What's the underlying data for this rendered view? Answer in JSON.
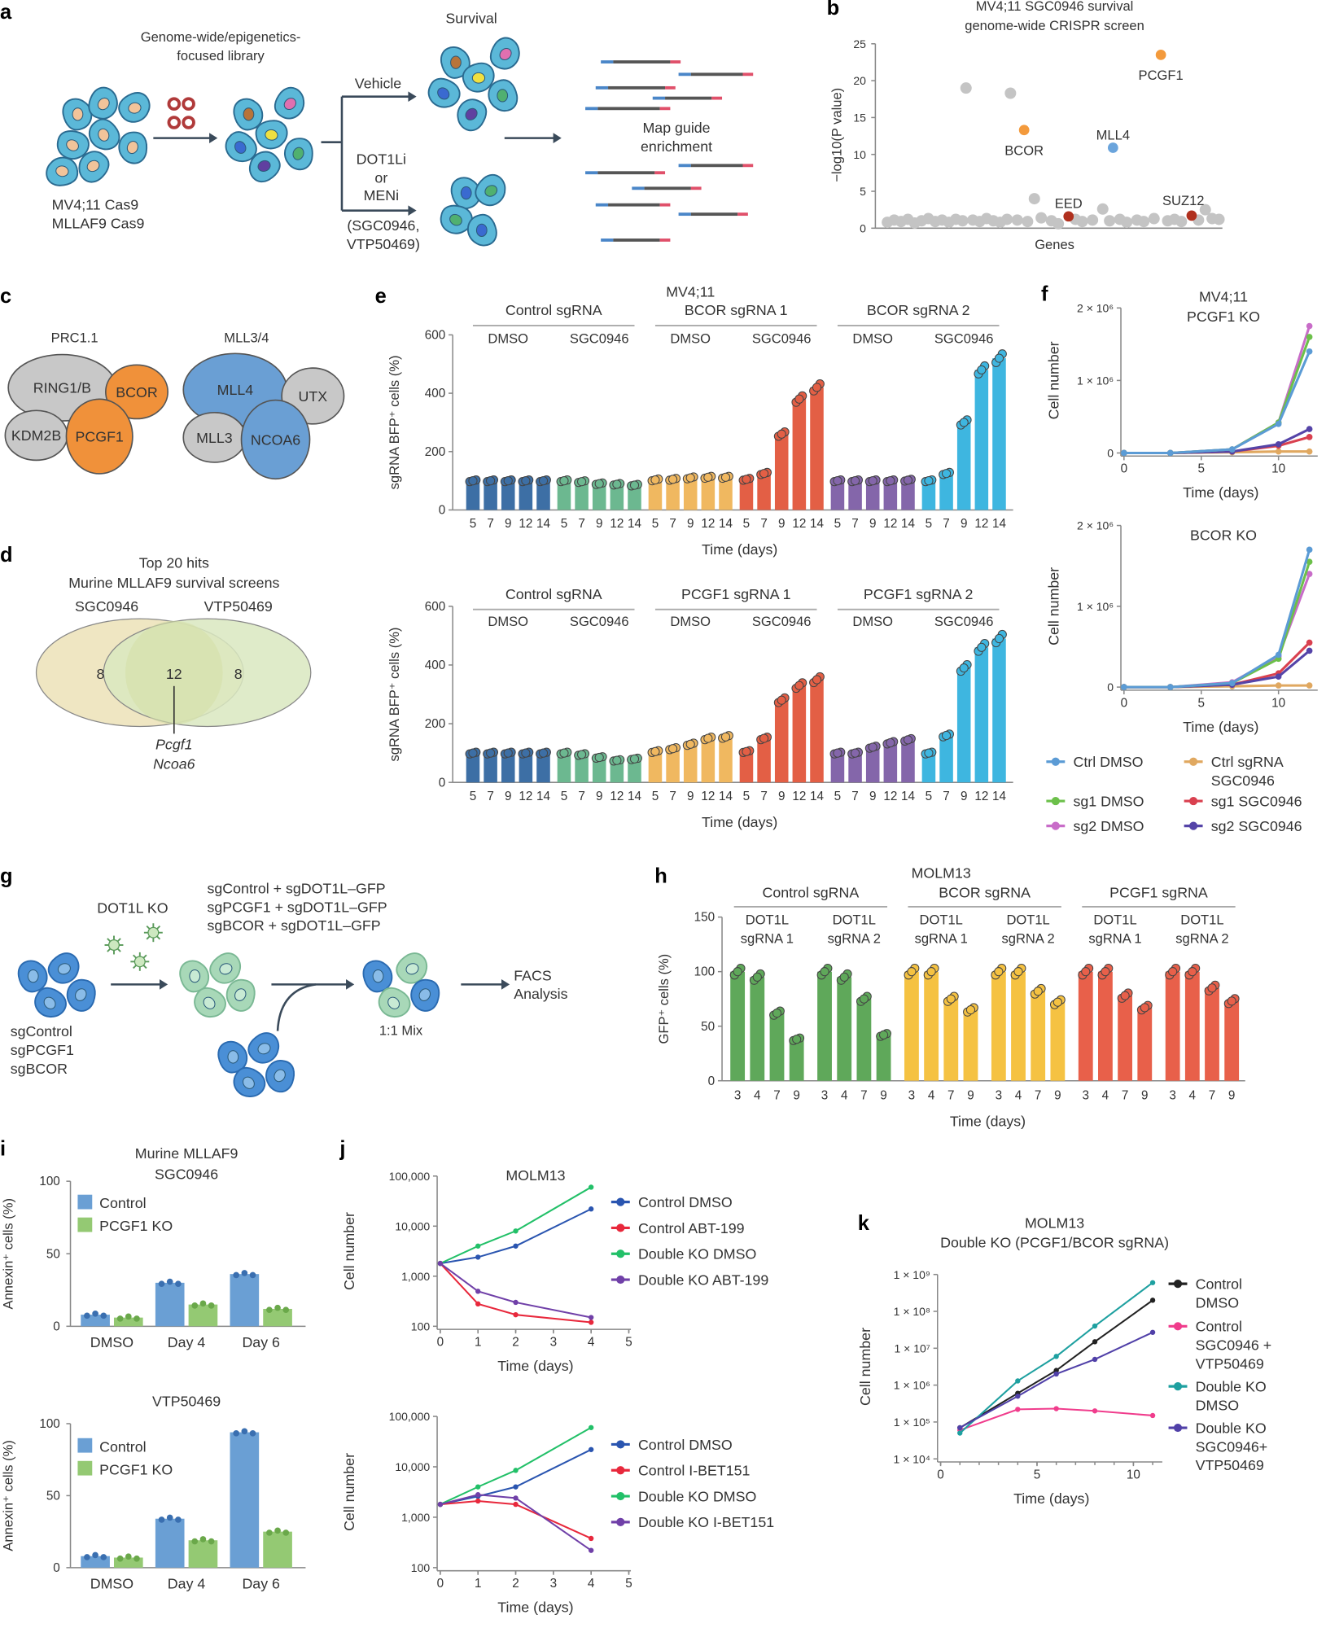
{
  "panels": [
    "a",
    "b",
    "c",
    "d",
    "e",
    "f",
    "g",
    "h",
    "i",
    "j",
    "k"
  ],
  "a": {
    "library": [
      "Genome-wide/epigenetics-",
      "focused library"
    ],
    "cells": [
      "MV4;11 Cas9",
      "MLLAF9 Cas9"
    ],
    "survival": "Survival",
    "vehicle": "Vehicle",
    "drug": [
      "DOT1Li",
      "or",
      "MENi",
      "(SGC0946,",
      "VTP50469)"
    ],
    "map": [
      "Map guide",
      "enrichment"
    ]
  },
  "c": {
    "prc": "PRC1.1",
    "mll": "MLL3/4",
    "subunits": [
      {
        "label": "RING1/B",
        "color": "#c8c8c8"
      },
      {
        "label": "BCOR",
        "color": "#f0913a"
      },
      {
        "label": "KDM2B",
        "color": "#c8c8c8"
      },
      {
        "label": "PCGF1",
        "color": "#f0913a"
      },
      {
        "label": "MLL4",
        "color": "#6a9fd4"
      },
      {
        "label": "UTX",
        "color": "#c8c8c8"
      },
      {
        "label": "MLL3",
        "color": "#c8c8c8"
      },
      {
        "label": "NCOA6",
        "color": "#6a9fd4"
      }
    ]
  },
  "d": {
    "title": [
      "Top 20 hits",
      "Murine MLLAF9 survival screens"
    ],
    "sets": [
      "SGC0946",
      "VTP50469"
    ],
    "counts": [
      "8",
      "12",
      "8"
    ],
    "genes": [
      "Pcgf1",
      "Ncoa6"
    ],
    "colors": [
      "#efe6c2",
      "#d9e7c0"
    ]
  },
  "g": {
    "ko": "DOT1L KO",
    "combos": [
      "sgControl + sgDOT1L–GFP",
      "sgPCGF1 + sgDOT1L–GFP",
      "sgBCOR + sgDOT1L–GFP"
    ],
    "guides": [
      "sgControl",
      "sgPCGF1",
      "sgBCOR"
    ],
    "mix": "1:1 Mix",
    "facs": [
      "FACS",
      "Analysis"
    ]
  },
  "chart_data": [
    {
      "panel": "b",
      "type": "scatter",
      "title": [
        "MV4;11 SGC0946 survival",
        "genome-wide CRISPR screen"
      ],
      "xlabel": "Genes",
      "ylabel": "−log10(P value)",
      "ylim": [
        0,
        25
      ],
      "yticks": [
        0,
        5,
        10,
        15,
        20,
        25
      ],
      "highlighted": [
        {
          "gene": "PCGF1",
          "x": 82,
          "y": 23.5,
          "color": "#f39a3c"
        },
        {
          "gene": "BCOR",
          "x": 42,
          "y": 13.3,
          "color": "#f39a3c"
        },
        {
          "gene": "MLL4",
          "x": 68,
          "y": 10.9,
          "color": "#6aa4dc"
        },
        {
          "gene": "EED",
          "x": 55,
          "y": 1.6,
          "color": "#b0301e"
        },
        {
          "gene": "SUZ12",
          "x": 91,
          "y": 1.7,
          "color": "#b0301e"
        }
      ],
      "other_color": "#c4c4c4",
      "other_points": [
        [
          2,
          0.8
        ],
        [
          4,
          1.1
        ],
        [
          6,
          0.9
        ],
        [
          8,
          1.2
        ],
        [
          10,
          0.7
        ],
        [
          12,
          1.0
        ],
        [
          14,
          1.3
        ],
        [
          16,
          0.9
        ],
        [
          18,
          1.1
        ],
        [
          20,
          0.8
        ],
        [
          22,
          1.2
        ],
        [
          24,
          1.0
        ],
        [
          25,
          19
        ],
        [
          27,
          1.1
        ],
        [
          29,
          0.9
        ],
        [
          31,
          1.3
        ],
        [
          33,
          1.0
        ],
        [
          35,
          0.8
        ],
        [
          37,
          1.2
        ],
        [
          38,
          18.3
        ],
        [
          40,
          1.1
        ],
        [
          43,
          0.9
        ],
        [
          45,
          4
        ],
        [
          47,
          1.4
        ],
        [
          50,
          1.0
        ],
        [
          52,
          0.6
        ],
        [
          57,
          1.2
        ],
        [
          59,
          0.9
        ],
        [
          62,
          1.1
        ],
        [
          65,
          2.6
        ],
        [
          67,
          1.0
        ],
        [
          70,
          1.2
        ],
        [
          72,
          0.8
        ],
        [
          75,
          1.1
        ],
        [
          77,
          0.9
        ],
        [
          80,
          1.3
        ],
        [
          84,
          1.0
        ],
        [
          86,
          1.2
        ],
        [
          88,
          0.9
        ],
        [
          93,
          1.1
        ],
        [
          95,
          2.5
        ],
        [
          97,
          1.3
        ],
        [
          99,
          1.2
        ]
      ]
    },
    {
      "panel": "e",
      "type": "bar",
      "title": "MV4;11",
      "group_headers": [
        "Control sgRNA",
        "BCOR sgRNA 1",
        "BCOR sgRNA 2"
      ],
      "treatments": [
        "DMSO",
        "SGC0946"
      ],
      "categories": [
        "5",
        "7",
        "9",
        "12",
        "14"
      ],
      "xlabel": "Time (days)",
      "ylabel": "sgRNA BFP⁺ cells (%)",
      "ylim": [
        0,
        600
      ],
      "yticks": [
        0,
        200,
        400,
        600
      ],
      "series": [
        {
          "color": "#3d6fa5",
          "values": [
            100,
            100,
            100,
            100,
            100
          ]
        },
        {
          "color": "#6cb890",
          "values": [
            100,
            97,
            90,
            88,
            85
          ]
        },
        {
          "color": "#f0b860",
          "values": [
            103,
            105,
            110,
            112,
            112
          ]
        },
        {
          "color": "#e35f45",
          "values": [
            105,
            125,
            260,
            380,
            420
          ]
        },
        {
          "color": "#8466aa",
          "values": [
            100,
            100,
            100,
            100,
            102
          ]
        },
        {
          "color": "#3eb6e0",
          "values": [
            100,
            125,
            300,
            480,
            520
          ]
        }
      ]
    },
    {
      "panel": "e",
      "type": "bar",
      "group_headers": [
        "Control sgRNA",
        "PCGF1 sgRNA 1",
        "PCGF1 sgRNA 2"
      ],
      "treatments": [
        "DMSO",
        "SGC0946"
      ],
      "categories": [
        "5",
        "7",
        "9",
        "12",
        "14"
      ],
      "xlabel": "Time (days)",
      "ylabel": "sgRNA BFP⁺ cells (%)",
      "ylim": [
        0,
        600
      ],
      "yticks": [
        0,
        200,
        400,
        600
      ],
      "series": [
        {
          "color": "#3d6fa5",
          "values": [
            100,
            100,
            100,
            100,
            100
          ]
        },
        {
          "color": "#6cb890",
          "values": [
            100,
            95,
            85,
            75,
            80
          ]
        },
        {
          "color": "#f0b860",
          "values": [
            105,
            115,
            130,
            150,
            155
          ]
        },
        {
          "color": "#e35f45",
          "values": [
            105,
            150,
            280,
            330,
            350
          ]
        },
        {
          "color": "#8466aa",
          "values": [
            100,
            100,
            120,
            135,
            145
          ]
        },
        {
          "color": "#3eb6e0",
          "values": [
            100,
            160,
            390,
            460,
            490
          ]
        }
      ]
    },
    {
      "panel": "f",
      "type": "line",
      "title": [
        "MV4;11",
        "PCGF1 KO"
      ],
      "xlabel": "Time (days)",
      "ylabel": "Cell number",
      "xlim": [
        0,
        12
      ],
      "xticks": [
        0,
        5,
        10
      ],
      "ylim": [
        0,
        2000000
      ],
      "yticks": [
        0,
        1000000,
        2000000
      ],
      "ytick_labels": [
        "0",
        "1 × 10⁶",
        "2 × 10⁶"
      ],
      "x": [
        0,
        3,
        7,
        10,
        12
      ],
      "series": [
        {
          "name": [
            "Ctrl DMSO"
          ],
          "color": "#5b9bd5",
          "values": [
            0,
            0,
            50000,
            400000,
            1400000
          ]
        },
        {
          "name": [
            "Ctrl sgRNA",
            "SGC0946"
          ],
          "color": "#e0a860",
          "values": [
            0,
            0,
            10000,
            20000,
            20000
          ]
        },
        {
          "name": [
            "sg1 DMSO"
          ],
          "color": "#6cc04a",
          "values": [
            0,
            0,
            50000,
            420000,
            1600000
          ]
        },
        {
          "name": [
            "sg1 SGC0946"
          ],
          "color": "#d9404f",
          "values": [
            0,
            0,
            20000,
            100000,
            220000
          ]
        },
        {
          "name": [
            "sg2 DMSO"
          ],
          "color": "#c86cc8",
          "values": [
            0,
            0,
            50000,
            420000,
            1750000
          ]
        },
        {
          "name": [
            "sg2 SGC0946"
          ],
          "color": "#5544a8",
          "values": [
            0,
            0,
            20000,
            120000,
            330000
          ]
        }
      ]
    },
    {
      "panel": "f",
      "type": "line",
      "title": [
        "BCOR KO"
      ],
      "xlabel": "Time (days)",
      "ylabel": "Cell number",
      "xlim": [
        0,
        12
      ],
      "xticks": [
        0,
        5,
        10
      ],
      "ylim": [
        0,
        2000000
      ],
      "yticks": [
        0,
        1000000,
        2000000
      ],
      "ytick_labels": [
        "0",
        "1 × 10⁶",
        "2 × 10⁶"
      ],
      "x": [
        0,
        3,
        7,
        10,
        12
      ],
      "series": [
        {
          "color": "#5b9bd5",
          "values": [
            0,
            0,
            50000,
            400000,
            1700000
          ]
        },
        {
          "color": "#e0a860",
          "values": [
            0,
            0,
            10000,
            20000,
            20000
          ]
        },
        {
          "color": "#6cc04a",
          "values": [
            0,
            0,
            50000,
            350000,
            1550000
          ]
        },
        {
          "color": "#d9404f",
          "values": [
            0,
            0,
            30000,
            170000,
            550000
          ]
        },
        {
          "color": "#c86cc8",
          "values": [
            0,
            0,
            60000,
            380000,
            1400000
          ]
        },
        {
          "color": "#5544a8",
          "values": [
            0,
            0,
            30000,
            130000,
            450000
          ]
        }
      ]
    },
    {
      "panel": "h",
      "type": "bar",
      "title": "MOLM13",
      "group_headers": [
        "Control sgRNA",
        "BCOR sgRNA",
        "PCGF1 sgRNA"
      ],
      "treatments": [
        [
          "DOT1L",
          "sgRNA 1"
        ],
        [
          "DOT1L",
          "sgRNA 2"
        ]
      ],
      "categories": [
        "3",
        "4",
        "7",
        "9"
      ],
      "xlabel": "Time (days)",
      "ylabel": "GFP⁺ cells (%)",
      "ylim": [
        0,
        150
      ],
      "yticks": [
        0,
        50,
        100,
        150
      ],
      "series": [
        {
          "color": "#5fa85a",
          "values": [
            100,
            95,
            62,
            38
          ]
        },
        {
          "color": "#5fa85a",
          "values": [
            100,
            95,
            75,
            42
          ]
        },
        {
          "color": "#f5c242",
          "values": [
            100,
            100,
            75,
            65
          ]
        },
        {
          "color": "#f5c242",
          "values": [
            100,
            100,
            82,
            72
          ]
        },
        {
          "color": "#e8604a",
          "values": [
            100,
            100,
            78,
            67
          ]
        },
        {
          "color": "#e8604a",
          "values": [
            100,
            100,
            85,
            73
          ]
        }
      ]
    },
    {
      "panel": "i",
      "type": "bar",
      "title": [
        "Murine MLLAF9",
        "SGC0946"
      ],
      "categories": [
        "DMSO",
        "Day 4",
        "Day 6"
      ],
      "ylabel": "Annexin⁺ cells (%)",
      "ylim": [
        0,
        100
      ],
      "yticks": [
        0,
        50,
        100
      ],
      "series": [
        {
          "name": "Control",
          "color": "#6a9fd4",
          "values": [
            8,
            30,
            36
          ]
        },
        {
          "name": "PCGF1 KO",
          "color": "#94c973",
          "values": [
            6,
            15,
            12
          ]
        }
      ]
    },
    {
      "panel": "i",
      "type": "bar",
      "title": [
        "VTP50469"
      ],
      "categories": [
        "DMSO",
        "Day 4",
        "Day 6"
      ],
      "ylabel": "Annexin⁺ cells (%)",
      "ylim": [
        0,
        100
      ],
      "yticks": [
        0,
        50,
        100
      ],
      "series": [
        {
          "name": "Control",
          "color": "#6a9fd4",
          "values": [
            8,
            34,
            94
          ]
        },
        {
          "name": "PCGF1 KO",
          "color": "#94c973",
          "values": [
            7,
            19,
            25
          ]
        }
      ]
    },
    {
      "panel": "j",
      "type": "line",
      "title": [
        "MOLM13"
      ],
      "yscale": "log",
      "xlabel": "Time (days)",
      "ylabel": "Cell number",
      "xlim": [
        0,
        5
      ],
      "xticks": [
        0,
        1,
        2,
        3,
        4,
        5
      ],
      "ylim": [
        100,
        100000
      ],
      "yticks": [
        100,
        1000,
        10000,
        100000
      ],
      "ytick_labels": [
        "100",
        "1,000",
        "10,000",
        "100,000"
      ],
      "x": [
        0,
        1,
        2,
        4
      ],
      "series": [
        {
          "name": [
            "Control DMSO"
          ],
          "color": "#2a55b0",
          "values": [
            1800,
            2400,
            4000,
            22000
          ]
        },
        {
          "name": [
            "Control ABT-199"
          ],
          "color": "#e8283c",
          "values": [
            1800,
            280,
            170,
            120
          ]
        },
        {
          "name": [
            "Double KO DMSO"
          ],
          "color": "#22c068",
          "values": [
            1800,
            4000,
            8000,
            60000
          ]
        },
        {
          "name": [
            "Double KO ABT-199"
          ],
          "color": "#7040a8",
          "values": [
            1800,
            500,
            300,
            150
          ]
        }
      ]
    },
    {
      "panel": "j",
      "type": "line",
      "yscale": "log",
      "xlabel": "Time (days)",
      "ylabel": "Cell number",
      "xlim": [
        0,
        5
      ],
      "xticks": [
        0,
        1,
        2,
        3,
        4,
        5
      ],
      "ylim": [
        100,
        100000
      ],
      "yticks": [
        100,
        1000,
        10000,
        100000
      ],
      "ytick_labels": [
        "100",
        "1,000",
        "10,000",
        "100,000"
      ],
      "x": [
        0,
        1,
        2,
        4
      ],
      "series": [
        {
          "name": [
            "Control DMSO"
          ],
          "color": "#2a55b0",
          "values": [
            1800,
            2600,
            4000,
            22000
          ]
        },
        {
          "name": [
            "Control I-BET151"
          ],
          "color": "#e8283c",
          "values": [
            1800,
            2100,
            1800,
            380
          ]
        },
        {
          "name": [
            "Double KO DMSO"
          ],
          "color": "#22c068",
          "values": [
            1800,
            4000,
            8500,
            60000
          ]
        },
        {
          "name": [
            "Double KO I-BET151"
          ],
          "color": "#7040a8",
          "values": [
            1800,
            2800,
            2400,
            220
          ]
        }
      ]
    },
    {
      "panel": "k",
      "type": "line",
      "title": [
        "MOLM13",
        "Double KO (PCGF1/BCOR sgRNA)"
      ],
      "yscale": "log",
      "xlabel": "Time (days)",
      "ylabel": "Cell number",
      "xlim": [
        0,
        11.5
      ],
      "xticks": [
        0,
        5,
        10
      ],
      "ylim": [
        10000,
        1000000000
      ],
      "yticks": [
        10000,
        100000,
        1000000,
        10000000,
        100000000,
        1000000000
      ],
      "ytick_labels": [
        "1 × 10⁴",
        "1 × 10⁵",
        "1 × 10⁶",
        "1 × 10⁷",
        "1 × 10⁸",
        "1 × 10⁹"
      ],
      "x": [
        1,
        4,
        6,
        8,
        11
      ],
      "series": [
        {
          "name": [
            "Control",
            "DMSO"
          ],
          "color": "#222222",
          "values": [
            70000,
            600000,
            2500000,
            15000000,
            200000000
          ]
        },
        {
          "name": [
            "Control",
            "SGC0946 +",
            "VTP50469"
          ],
          "color": "#f03c8c",
          "values": [
            60000,
            220000,
            230000,
            200000,
            150000
          ]
        },
        {
          "name": [
            "Double KO",
            "DMSO"
          ],
          "color": "#1ea0a0",
          "values": [
            50000,
            1300000,
            6000000,
            40000000,
            600000000
          ]
        },
        {
          "name": [
            "Double KO",
            "SGC0946+",
            "VTP50469"
          ],
          "color": "#5040a8",
          "values": [
            70000,
            500000,
            2000000,
            5000000,
            27000000
          ]
        }
      ]
    }
  ]
}
